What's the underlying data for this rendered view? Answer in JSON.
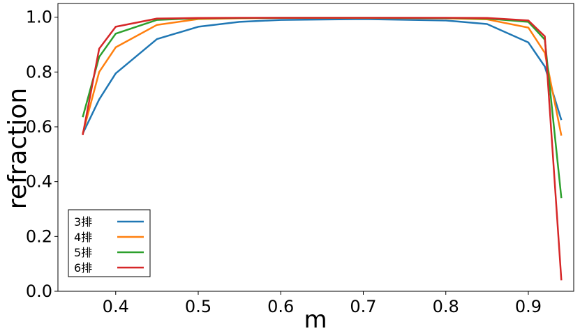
{
  "chart_data": {
    "type": "line",
    "title": "",
    "xlabel": "m",
    "ylabel": "refraction",
    "xlim": [
      0.33,
      0.955
    ],
    "ylim": [
      0.0,
      1.05
    ],
    "xticks": [
      0.4,
      0.5,
      0.6,
      0.7,
      0.8,
      0.9
    ],
    "xtick_labels": [
      "0.4",
      "0.5",
      "0.6",
      "0.7",
      "0.8",
      "0.9"
    ],
    "yticks": [
      0.0,
      0.2,
      0.4,
      0.6,
      0.8,
      1.0
    ],
    "ytick_labels": [
      "0.0",
      "0.2",
      "0.4",
      "0.6",
      "0.8",
      "1.0"
    ],
    "grid": false,
    "legend_position": "bottom-left",
    "x": [
      0.36,
      0.38,
      0.4,
      0.45,
      0.5,
      0.55,
      0.6,
      0.7,
      0.8,
      0.85,
      0.9,
      0.92,
      0.94
    ],
    "series": [
      {
        "name": "3排",
        "color": "#1f77b4",
        "values": [
          0.575,
          0.7,
          0.795,
          0.92,
          0.965,
          0.983,
          0.99,
          0.993,
          0.988,
          0.975,
          0.908,
          0.82,
          0.625
        ]
      },
      {
        "name": "4排",
        "color": "#ff7f0e",
        "values": [
          0.575,
          0.8,
          0.89,
          0.972,
          0.993,
          0.996,
          0.997,
          0.997,
          0.996,
          0.992,
          0.962,
          0.87,
          0.568
        ]
      },
      {
        "name": "5排",
        "color": "#2ca02c",
        "values": [
          0.635,
          0.855,
          0.94,
          0.99,
          0.996,
          0.997,
          0.998,
          0.998,
          0.997,
          0.995,
          0.983,
          0.918,
          0.34
        ]
      },
      {
        "name": "6排",
        "color": "#d62728",
        "values": [
          0.57,
          0.885,
          0.965,
          0.995,
          0.997,
          0.998,
          0.998,
          0.998,
          0.998,
          0.997,
          0.988,
          0.93,
          0.04
        ]
      }
    ]
  }
}
